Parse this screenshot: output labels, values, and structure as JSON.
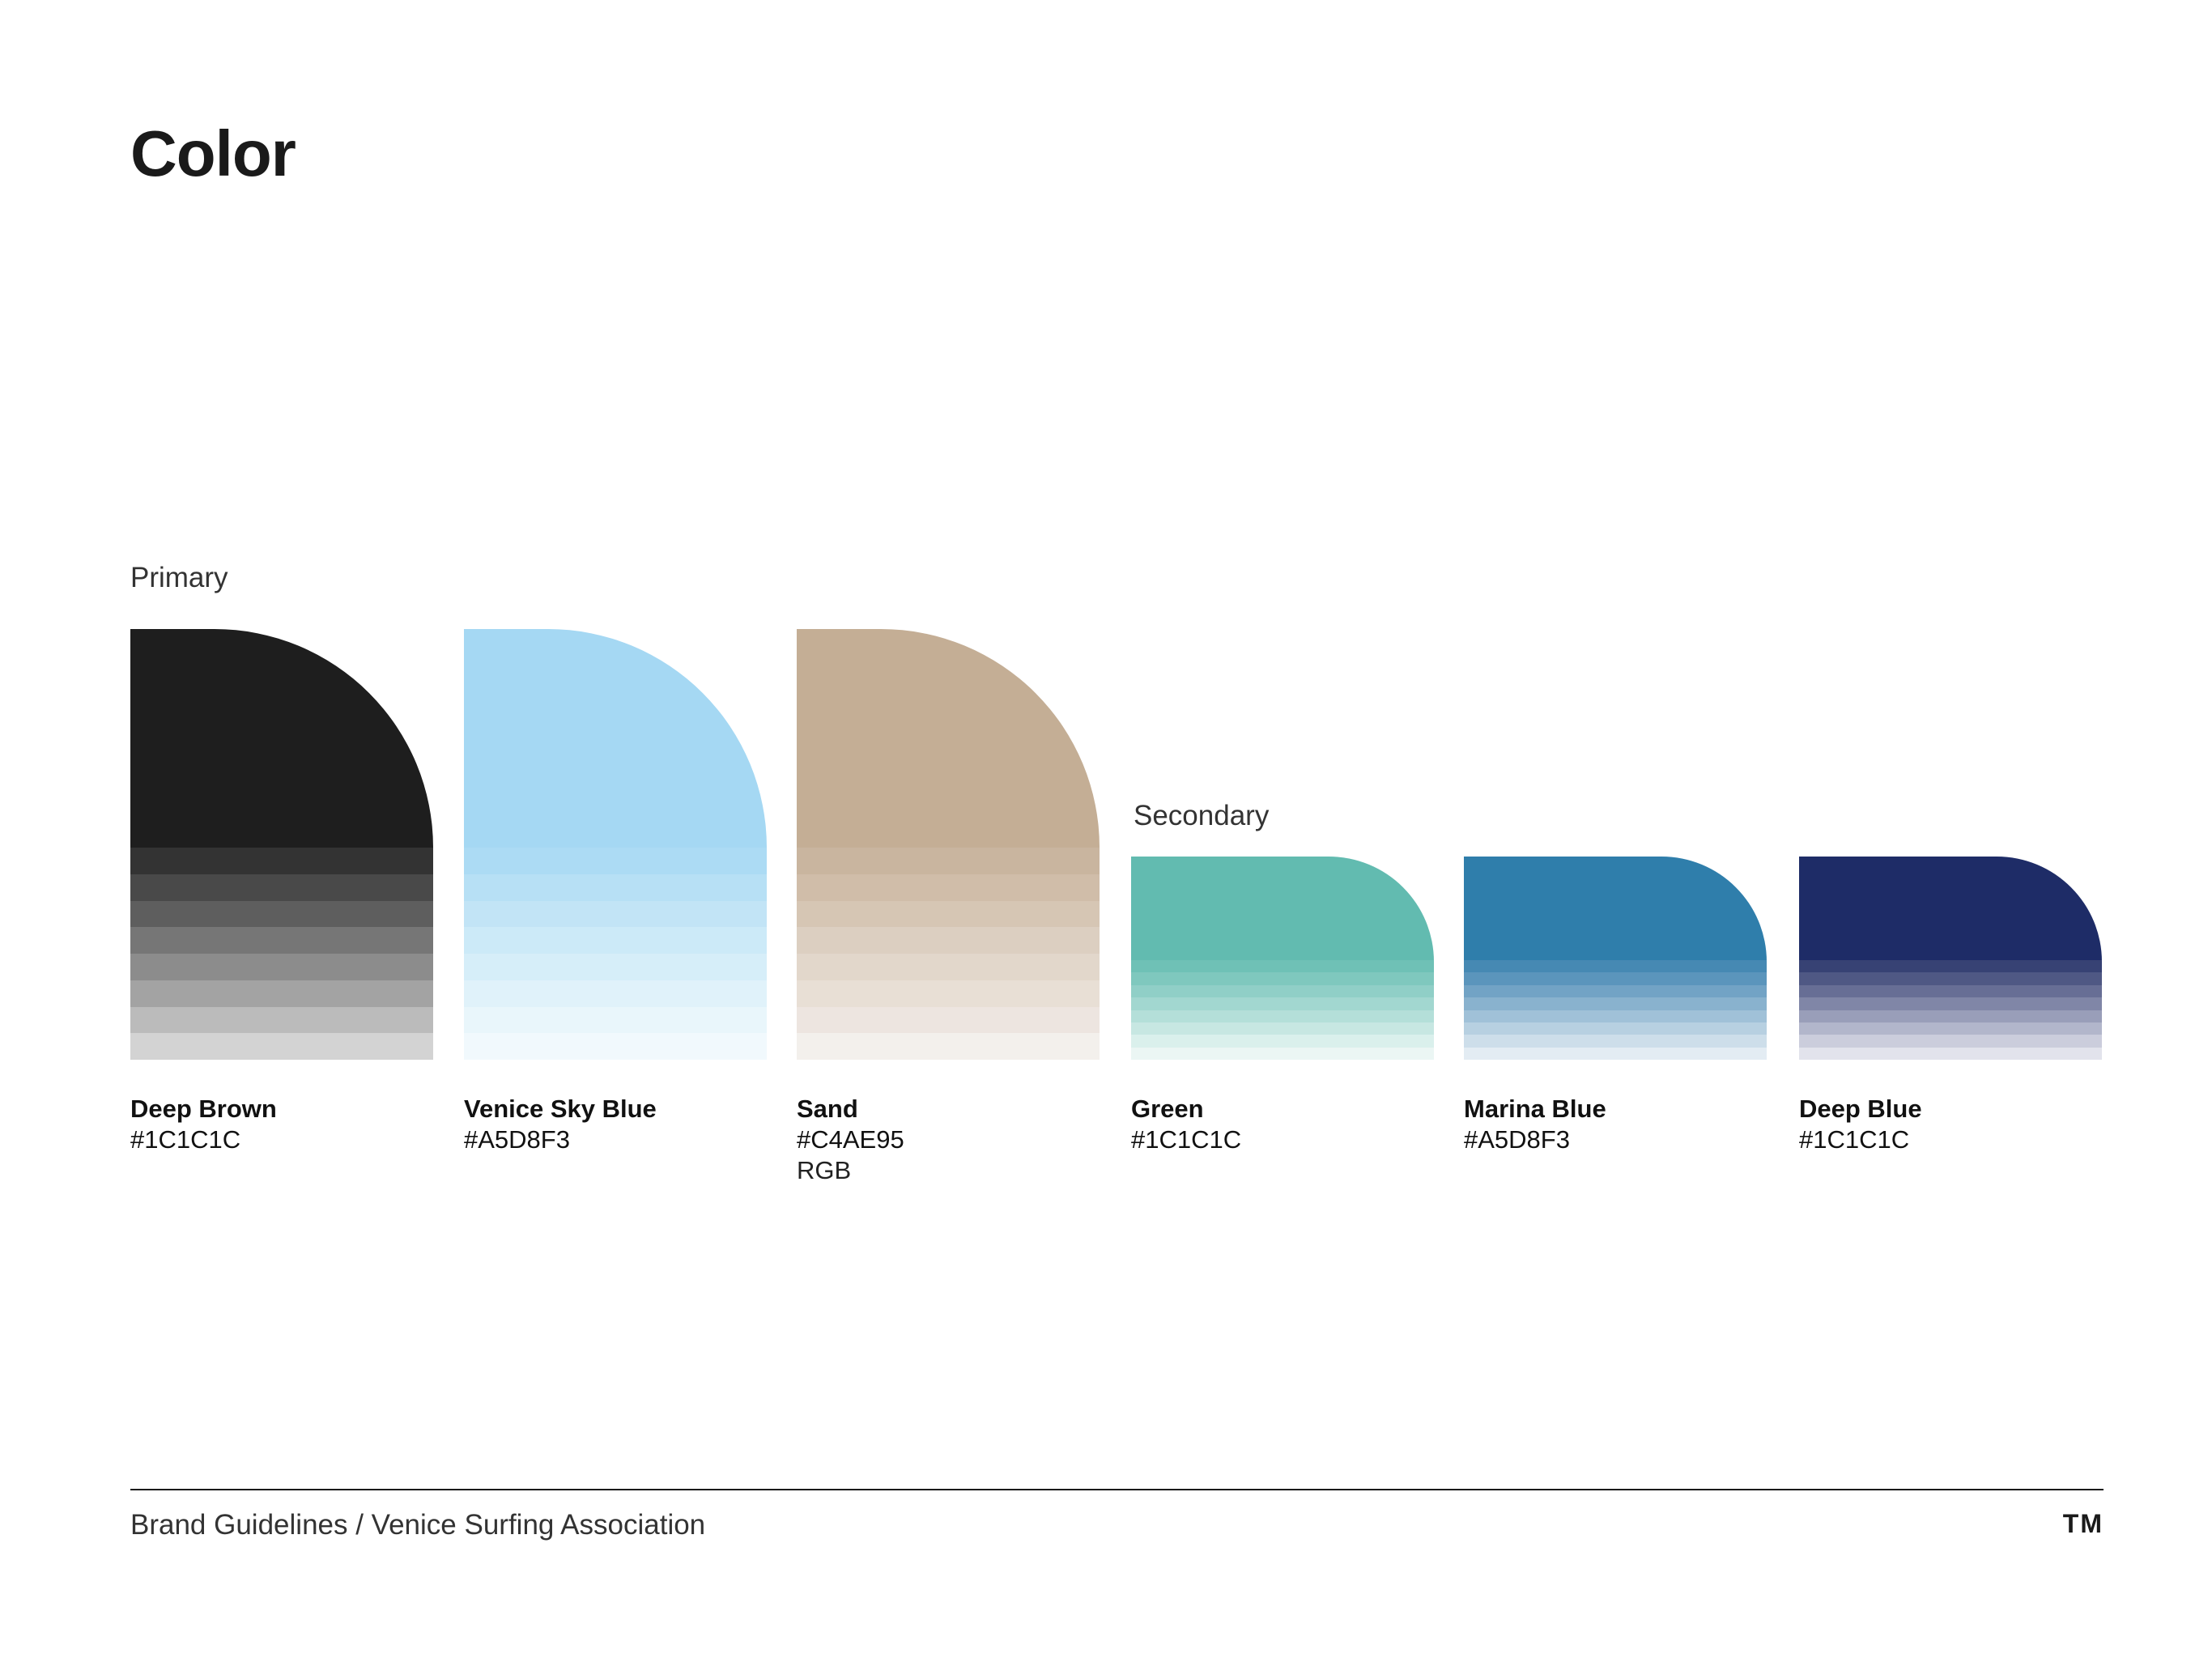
{
  "page": {
    "title": "Color"
  },
  "primary": {
    "label": "Primary",
    "swatches": [
      {
        "name": "Deep Brown",
        "hex": "#1C1C1C",
        "extra": "",
        "colors": [
          "#1e1e1e",
          "#333333",
          "#494949",
          "#5e5e5e",
          "#767676",
          "#8c8c8c",
          "#a3a3a3",
          "#bbbbbb",
          "#d3d3d3"
        ]
      },
      {
        "name": "Venice Sky Blue",
        "hex": "#A5D8F3",
        "extra": "",
        "colors": [
          "#a5d8f3",
          "#acdbf4",
          "#b7e0f5",
          "#c2e4f6",
          "#cceaf8",
          "#d6eef9",
          "#e0f2fa",
          "#e9f6fb",
          "#f1f9fd"
        ]
      },
      {
        "name": "Sand",
        "hex": "#C4AE95",
        "extra": "RGB",
        "colors": [
          "#c4ae95",
          "#c9b59f",
          "#d0bda9",
          "#d6c6b4",
          "#dccfc1",
          "#e2d7cb",
          "#e8dfd5",
          "#ede5e0",
          "#f3f0ec"
        ]
      }
    ]
  },
  "secondary": {
    "label": "Secondary",
    "swatches": [
      {
        "name": "Green",
        "hex": "#1C1C1C",
        "colors": [
          "#62bbb0",
          "#6fc1b6",
          "#7fc8be",
          "#90cfc7",
          "#a2d7d0",
          "#b4dfd9",
          "#c7e7e2",
          "#daf0ec",
          "#ebf6f4"
        ]
      },
      {
        "name": "Marina Blue",
        "hex": "#A5D8F3",
        "colors": [
          "#2f7eab",
          "#4689b3",
          "#5b95bc",
          "#72a3c5",
          "#89b2ce",
          "#a0c1d8",
          "#b7d0e1",
          "#cddeea",
          "#e3ecf3"
        ]
      },
      {
        "name": "Deep Blue",
        "hex": "#1C1C1C",
        "colors": [
          "#1e2c67",
          "#374274",
          "#4f5884",
          "#676e95",
          "#8086a7",
          "#999eb9",
          "#b2b6cb",
          "#cbcddc",
          "#e2e3ec"
        ]
      }
    ]
  },
  "footer": {
    "text": "Brand Guidelines / Venice Surfing Association",
    "mark": "TM"
  }
}
